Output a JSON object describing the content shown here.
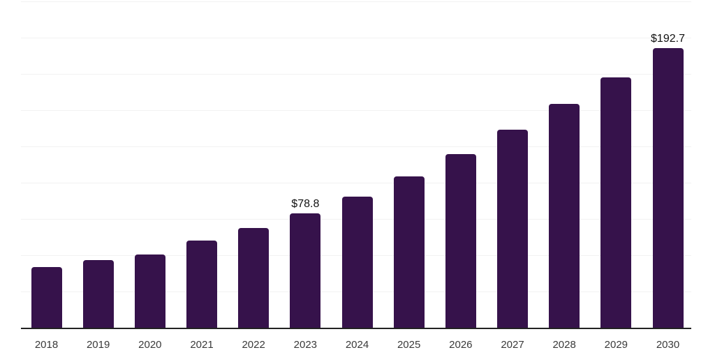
{
  "chart_data": {
    "type": "bar",
    "title": "",
    "xlabel": "",
    "ylabel": "",
    "categories": [
      "2018",
      "2019",
      "2020",
      "2021",
      "2022",
      "2023",
      "2024",
      "2025",
      "2026",
      "2027",
      "2028",
      "2029",
      "2030"
    ],
    "values": [
      41.8,
      46.6,
      50.5,
      60.1,
      68.8,
      78.8,
      90.4,
      104.3,
      119.7,
      136.5,
      154.1,
      172.8,
      192.7
    ],
    "annotations": [
      {
        "category": "2023",
        "text": "$78.8"
      },
      {
        "category": "2030",
        "text": "$192.7"
      }
    ],
    "ylim": [
      0,
      225
    ],
    "gridline_step": 25,
    "grid": true,
    "y_tick_labels_visible": false,
    "legend_position": "none",
    "bar_color": "#36124B",
    "axis_color": "#222222",
    "gridline_color": "#f2f2f2",
    "tick_label_color": "#3a3a3a",
    "data_label_color": "#111111"
  }
}
